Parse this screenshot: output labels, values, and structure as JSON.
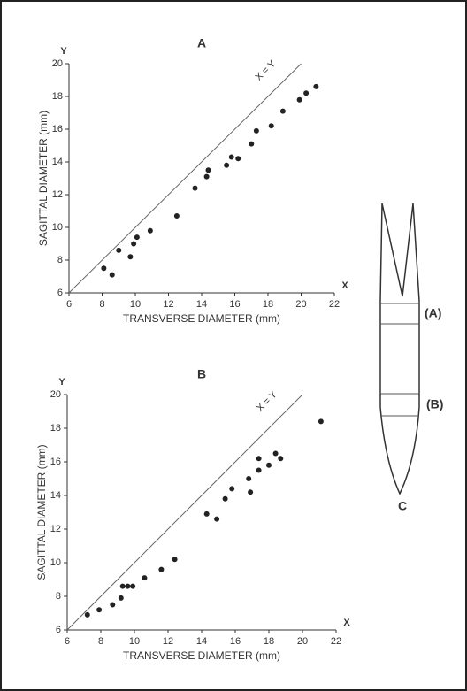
{
  "chart_data": [
    {
      "type": "scatter",
      "title": "A",
      "xlabel": "TRANSVERSE DIAMETER (mm)",
      "ylabel": "SAGITTAL DIAMETER (mm)",
      "x_axis_name": "X",
      "y_axis_name": "Y",
      "annotation": "X = Y",
      "color": "#222222",
      "xlim": [
        6,
        22
      ],
      "ylim": [
        6,
        20
      ],
      "xticks": [
        6,
        8,
        10,
        12,
        14,
        16,
        18,
        20,
        22
      ],
      "yticks": [
        6,
        8,
        10,
        12,
        14,
        16,
        18,
        20
      ],
      "x": [
        8.1,
        8.6,
        9.0,
        9.7,
        9.9,
        10.1,
        10.9,
        12.5,
        13.6,
        14.3,
        14.4,
        15.5,
        15.8,
        16.2,
        17.0,
        17.3,
        18.2,
        18.9,
        19.9,
        20.3,
        20.9
      ],
      "values": [
        7.5,
        7.1,
        8.6,
        8.2,
        9.0,
        9.4,
        9.8,
        10.7,
        12.4,
        13.1,
        13.5,
        13.8,
        14.3,
        14.2,
        15.1,
        15.9,
        16.2,
        17.1,
        17.8,
        18.2,
        18.6
      ]
    },
    {
      "type": "scatter",
      "title": "B",
      "xlabel": "TRANSVERSE DIAMETER (mm)",
      "ylabel": "SAGITTAL DIAMETER (mm)",
      "x_axis_name": "X",
      "y_axis_name": "Y",
      "annotation": "X = Y",
      "color": "#222222",
      "xlim": [
        6,
        22
      ],
      "ylim": [
        6,
        20
      ],
      "xticks": [
        6,
        8,
        10,
        12,
        14,
        16,
        18,
        20,
        22
      ],
      "yticks": [
        6,
        8,
        10,
        12,
        14,
        16,
        18,
        20
      ],
      "x": [
        7.2,
        7.9,
        8.7,
        9.2,
        9.3,
        9.6,
        9.9,
        10.6,
        11.6,
        12.4,
        14.3,
        14.9,
        15.4,
        15.8,
        16.8,
        16.9,
        17.4,
        17.4,
        18.0,
        18.4,
        18.7,
        21.1
      ],
      "values": [
        6.9,
        7.2,
        7.5,
        7.9,
        8.6,
        8.6,
        8.6,
        9.1,
        9.6,
        10.2,
        12.9,
        12.6,
        13.8,
        14.4,
        15.0,
        14.2,
        15.5,
        16.2,
        15.8,
        16.5,
        16.2,
        18.4
      ]
    }
  ],
  "diagram": {
    "label_a": "(A)",
    "label_b": "(B)",
    "label_c": "C"
  }
}
